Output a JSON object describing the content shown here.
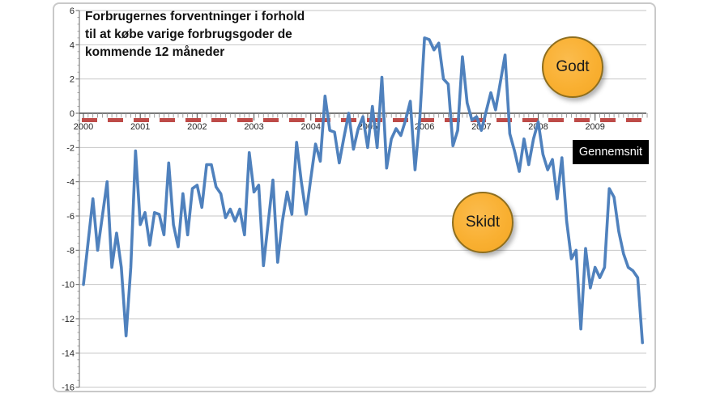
{
  "chart_data": {
    "type": "line",
    "title_lines": [
      "Forbrugernes forventninger i forhold",
      "til at købe varige forbrugsgoder de",
      "kommende 12 måneder"
    ],
    "frequency": "monthly",
    "x_start": "2000-01",
    "x_end": "2009-11",
    "years": [
      "2000",
      "2001",
      "2002",
      "2003",
      "2004",
      "2005",
      "2006",
      "2007",
      "2008",
      "2009"
    ],
    "yticks": [
      "6",
      "4",
      "2",
      "0",
      "-2",
      "-4",
      "-6",
      "-8",
      "-10",
      "-12",
      "-14",
      "-16"
    ],
    "ylim": [
      -16,
      6
    ],
    "grid": true,
    "monthly_values": [
      -10,
      -7.5,
      -5,
      -8,
      -6,
      -4,
      -9,
      -7,
      -9,
      -13,
      -9,
      -2.2,
      -6.5,
      -5.8,
      -7.7,
      -5.8,
      -5.9,
      -7.1,
      -2.9,
      -6.5,
      -7.8,
      -4.7,
      -7.1,
      -4.4,
      -4.2,
      -5.5,
      -3.0,
      -3.0,
      -4.3,
      -4.7,
      -6.1,
      -5.6,
      -6.3,
      -5.6,
      -7.1,
      -2.3,
      -4.6,
      -4.2,
      -8.9,
      -6.4,
      -3.9,
      -8.7,
      -6.3,
      -4.6,
      -5.9,
      -1.7,
      -4.0,
      -5.9,
      -3.8,
      -1.8,
      -2.8,
      1.0,
      -1.0,
      -1.1,
      -2.9,
      -1.4,
      0.0,
      -2.1,
      -0.9,
      -0.2,
      -2.0,
      0.4,
      -2.0,
      2.1,
      -3.2,
      -1.5,
      -0.9,
      -1.3,
      -0.4,
      0.7,
      -3.3,
      -0.3,
      4.4,
      4.3,
      3.7,
      4.1,
      2.0,
      1.7,
      -1.9,
      -1.0,
      3.3,
      0.6,
      -0.4,
      -0.2,
      -1.0,
      0.1,
      1.2,
      0.2,
      1.8,
      3.4,
      -1.2,
      -2.2,
      -3.4,
      -1.5,
      -3.0,
      -1.5,
      -0.5,
      -2.4,
      -3.3,
      -2.7,
      -5.0,
      -2.6,
      -6.3,
      -8.5,
      -8.0,
      -12.6,
      -7.9,
      -10.2,
      -9.0,
      -9.6,
      -9.0,
      -4.4,
      -4.9,
      -6.9,
      -8.2,
      -9.0,
      -9.2,
      -9.6,
      -13.4
    ],
    "avg_line": {
      "label": "Gennemsnit",
      "value": -0.4,
      "color": "#be4b48",
      "style": "dashed"
    },
    "annotations": [
      {
        "label": "Godt",
        "position": "above zero line, right side",
        "color": "#f9b032"
      },
      {
        "label": "Skidt",
        "position": "below zero line, center-right",
        "color": "#f9b032"
      }
    ],
    "colors": {
      "line": "#4f81bd",
      "grid": "#c6c6c6",
      "axis": "#4d4d4d",
      "y_axis": "#808080",
      "tick": "#8a8a8a",
      "annotation_fill": "#f9b032",
      "annotation_border": "#8e6e1e",
      "avg_box_bg": "#000000",
      "avg_box_text": "#ffffff"
    }
  },
  "labels": {
    "godt": "Godt",
    "skidt": "Skidt",
    "gennemsnit": "Gennemsnit"
  }
}
